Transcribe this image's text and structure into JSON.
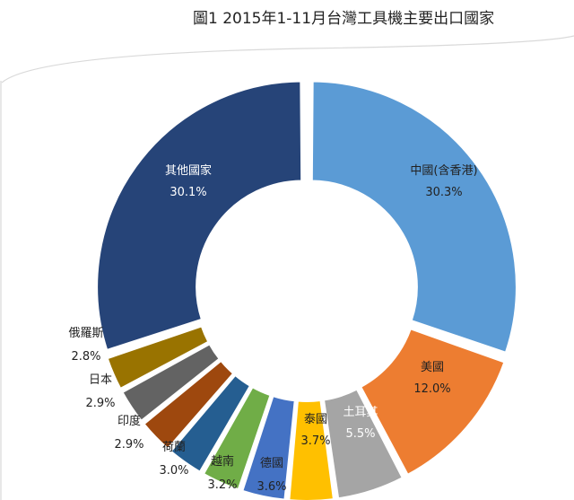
{
  "chart_data": {
    "type": "pie",
    "title": "圖1  2015年1-11月台灣工具機主要出口國家",
    "donut": true,
    "slices": [
      {
        "name": "中國(含香港)",
        "value": 30.3,
        "label": "30.3%",
        "color": "#5B9BD5"
      },
      {
        "name": "美國",
        "value": 12.0,
        "label": "12.0%",
        "color": "#ED7D31"
      },
      {
        "name": "土耳其",
        "value": 5.5,
        "label": "5.5%",
        "color": "#A5A5A5"
      },
      {
        "name": "泰國",
        "value": 3.7,
        "label": "3.7%",
        "color": "#FFC000"
      },
      {
        "name": "德國",
        "value": 3.6,
        "label": "3.6%",
        "color": "#4472C4"
      },
      {
        "name": "越南",
        "value": 3.2,
        "label": "3.2%",
        "color": "#70AD47"
      },
      {
        "name": "荷蘭",
        "value": 3.0,
        "label": "3.0%",
        "color": "#255E91"
      },
      {
        "name": "印度",
        "value": 2.9,
        "label": "2.9%",
        "color": "#9E480E"
      },
      {
        "name": "日本",
        "value": 2.9,
        "label": "2.9%",
        "color": "#636363"
      },
      {
        "name": "俄羅斯",
        "value": 2.8,
        "label": "2.8%",
        "color": "#997300"
      },
      {
        "name": "其他國家",
        "value": 30.1,
        "label": "30.1%",
        "color": "#264478"
      }
    ]
  }
}
